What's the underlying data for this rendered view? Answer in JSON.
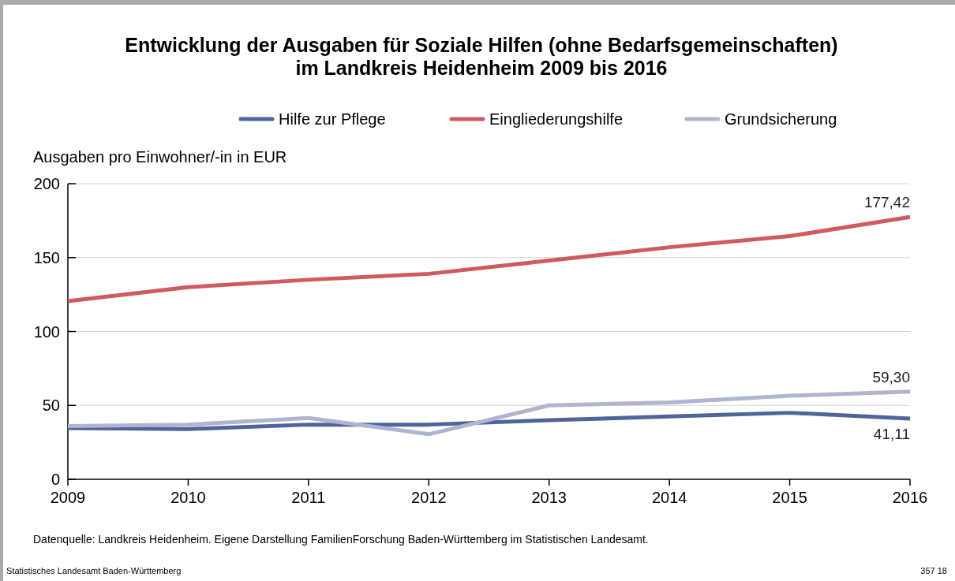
{
  "chart_data": {
    "type": "line",
    "title": "Entwicklung der Ausgaben für Soziale Hilfen (ohne Bedarfsgemeinschaften)\nim Landkreis Heidenheim 2009 bis 2016",
    "ylabel": "Ausgaben pro Einwohner/-in in EUR",
    "x": [
      2009,
      2010,
      2011,
      2012,
      2013,
      2014,
      2015,
      2016
    ],
    "xlim": [
      2009,
      2016
    ],
    "xticks": [
      2009,
      2010,
      2011,
      2012,
      2013,
      2014,
      2015,
      2016
    ],
    "ylim": [
      0,
      200
    ],
    "yticks": [
      0,
      50,
      100,
      150,
      200
    ],
    "series": [
      {
        "name": "Hilfe zur Pflege",
        "color": "#4f6599",
        "values": [
          34.7,
          34,
          37,
          37,
          40,
          42.5,
          45,
          41.11
        ],
        "value_labels": [
          null,
          null,
          null,
          null,
          null,
          null,
          null,
          "41,11"
        ]
      },
      {
        "name": "Eingliederungshilfe",
        "color": "#d05a5e",
        "values": [
          120.5,
          130,
          135,
          139,
          148,
          157,
          164.5,
          177.42
        ],
        "value_labels": [
          null,
          null,
          null,
          null,
          null,
          null,
          null,
          "177,42"
        ]
      },
      {
        "name": "Grundsicherung",
        "color": "#b0b4d0",
        "values": [
          36,
          37,
          41.5,
          30.5,
          50,
          52,
          56.5,
          59.3
        ],
        "value_labels": [
          null,
          null,
          null,
          null,
          null,
          null,
          null,
          "59,30"
        ]
      }
    ],
    "grid": "y",
    "legend": "top",
    "line_style": "solid",
    "annotations": [
      "Datenquelle: Landkreis Heidenheim. Eigene Darstellung FamilienForschung Baden-Württemberg im Statistischen Landesamt.",
      "Statistisches Landesamt Baden-Württemberg",
      "357 18"
    ]
  }
}
